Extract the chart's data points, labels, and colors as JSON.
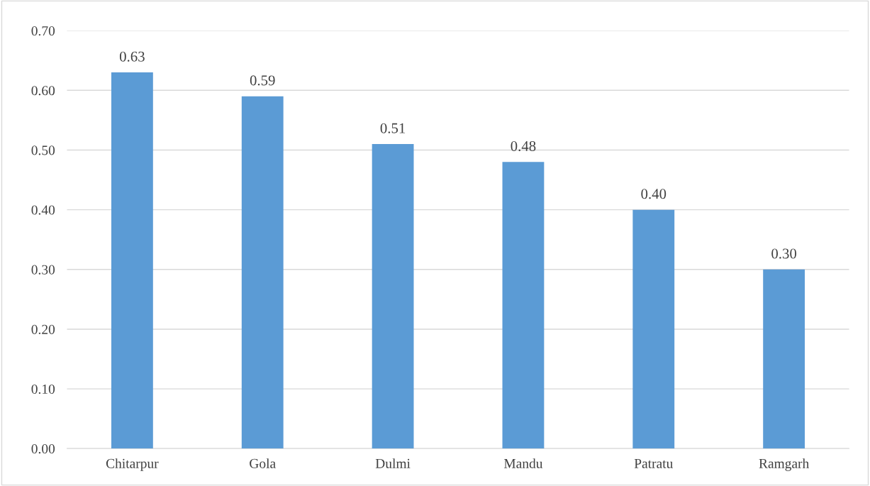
{
  "chart_data": {
    "type": "bar",
    "categories": [
      "Chitarpur",
      "Gola",
      "Dulmi",
      "Mandu",
      "Patratu",
      "Ramgarh"
    ],
    "values": [
      0.63,
      0.59,
      0.51,
      0.48,
      0.4,
      0.3
    ],
    "color": "#5b9bd5",
    "ylim": [
      0,
      0.7
    ],
    "yticks": [
      {
        "value": 0,
        "label": "0.00"
      },
      {
        "value": 0.1,
        "label": "0.10"
      },
      {
        "value": 0.2,
        "label": "0.20"
      },
      {
        "value": 0.3,
        "label": "0.30"
      },
      {
        "value": 0.4,
        "label": "0.40"
      },
      {
        "value": 0.5,
        "label": "0.50"
      },
      {
        "value": 0.6,
        "label": "0.60"
      },
      {
        "value": 0.7,
        "label": "0.70"
      }
    ],
    "value_labels": [
      "0.63",
      "0.59",
      "0.51",
      "0.48",
      "0.40",
      "0.30"
    ],
    "grid": "y",
    "legend": false
  }
}
